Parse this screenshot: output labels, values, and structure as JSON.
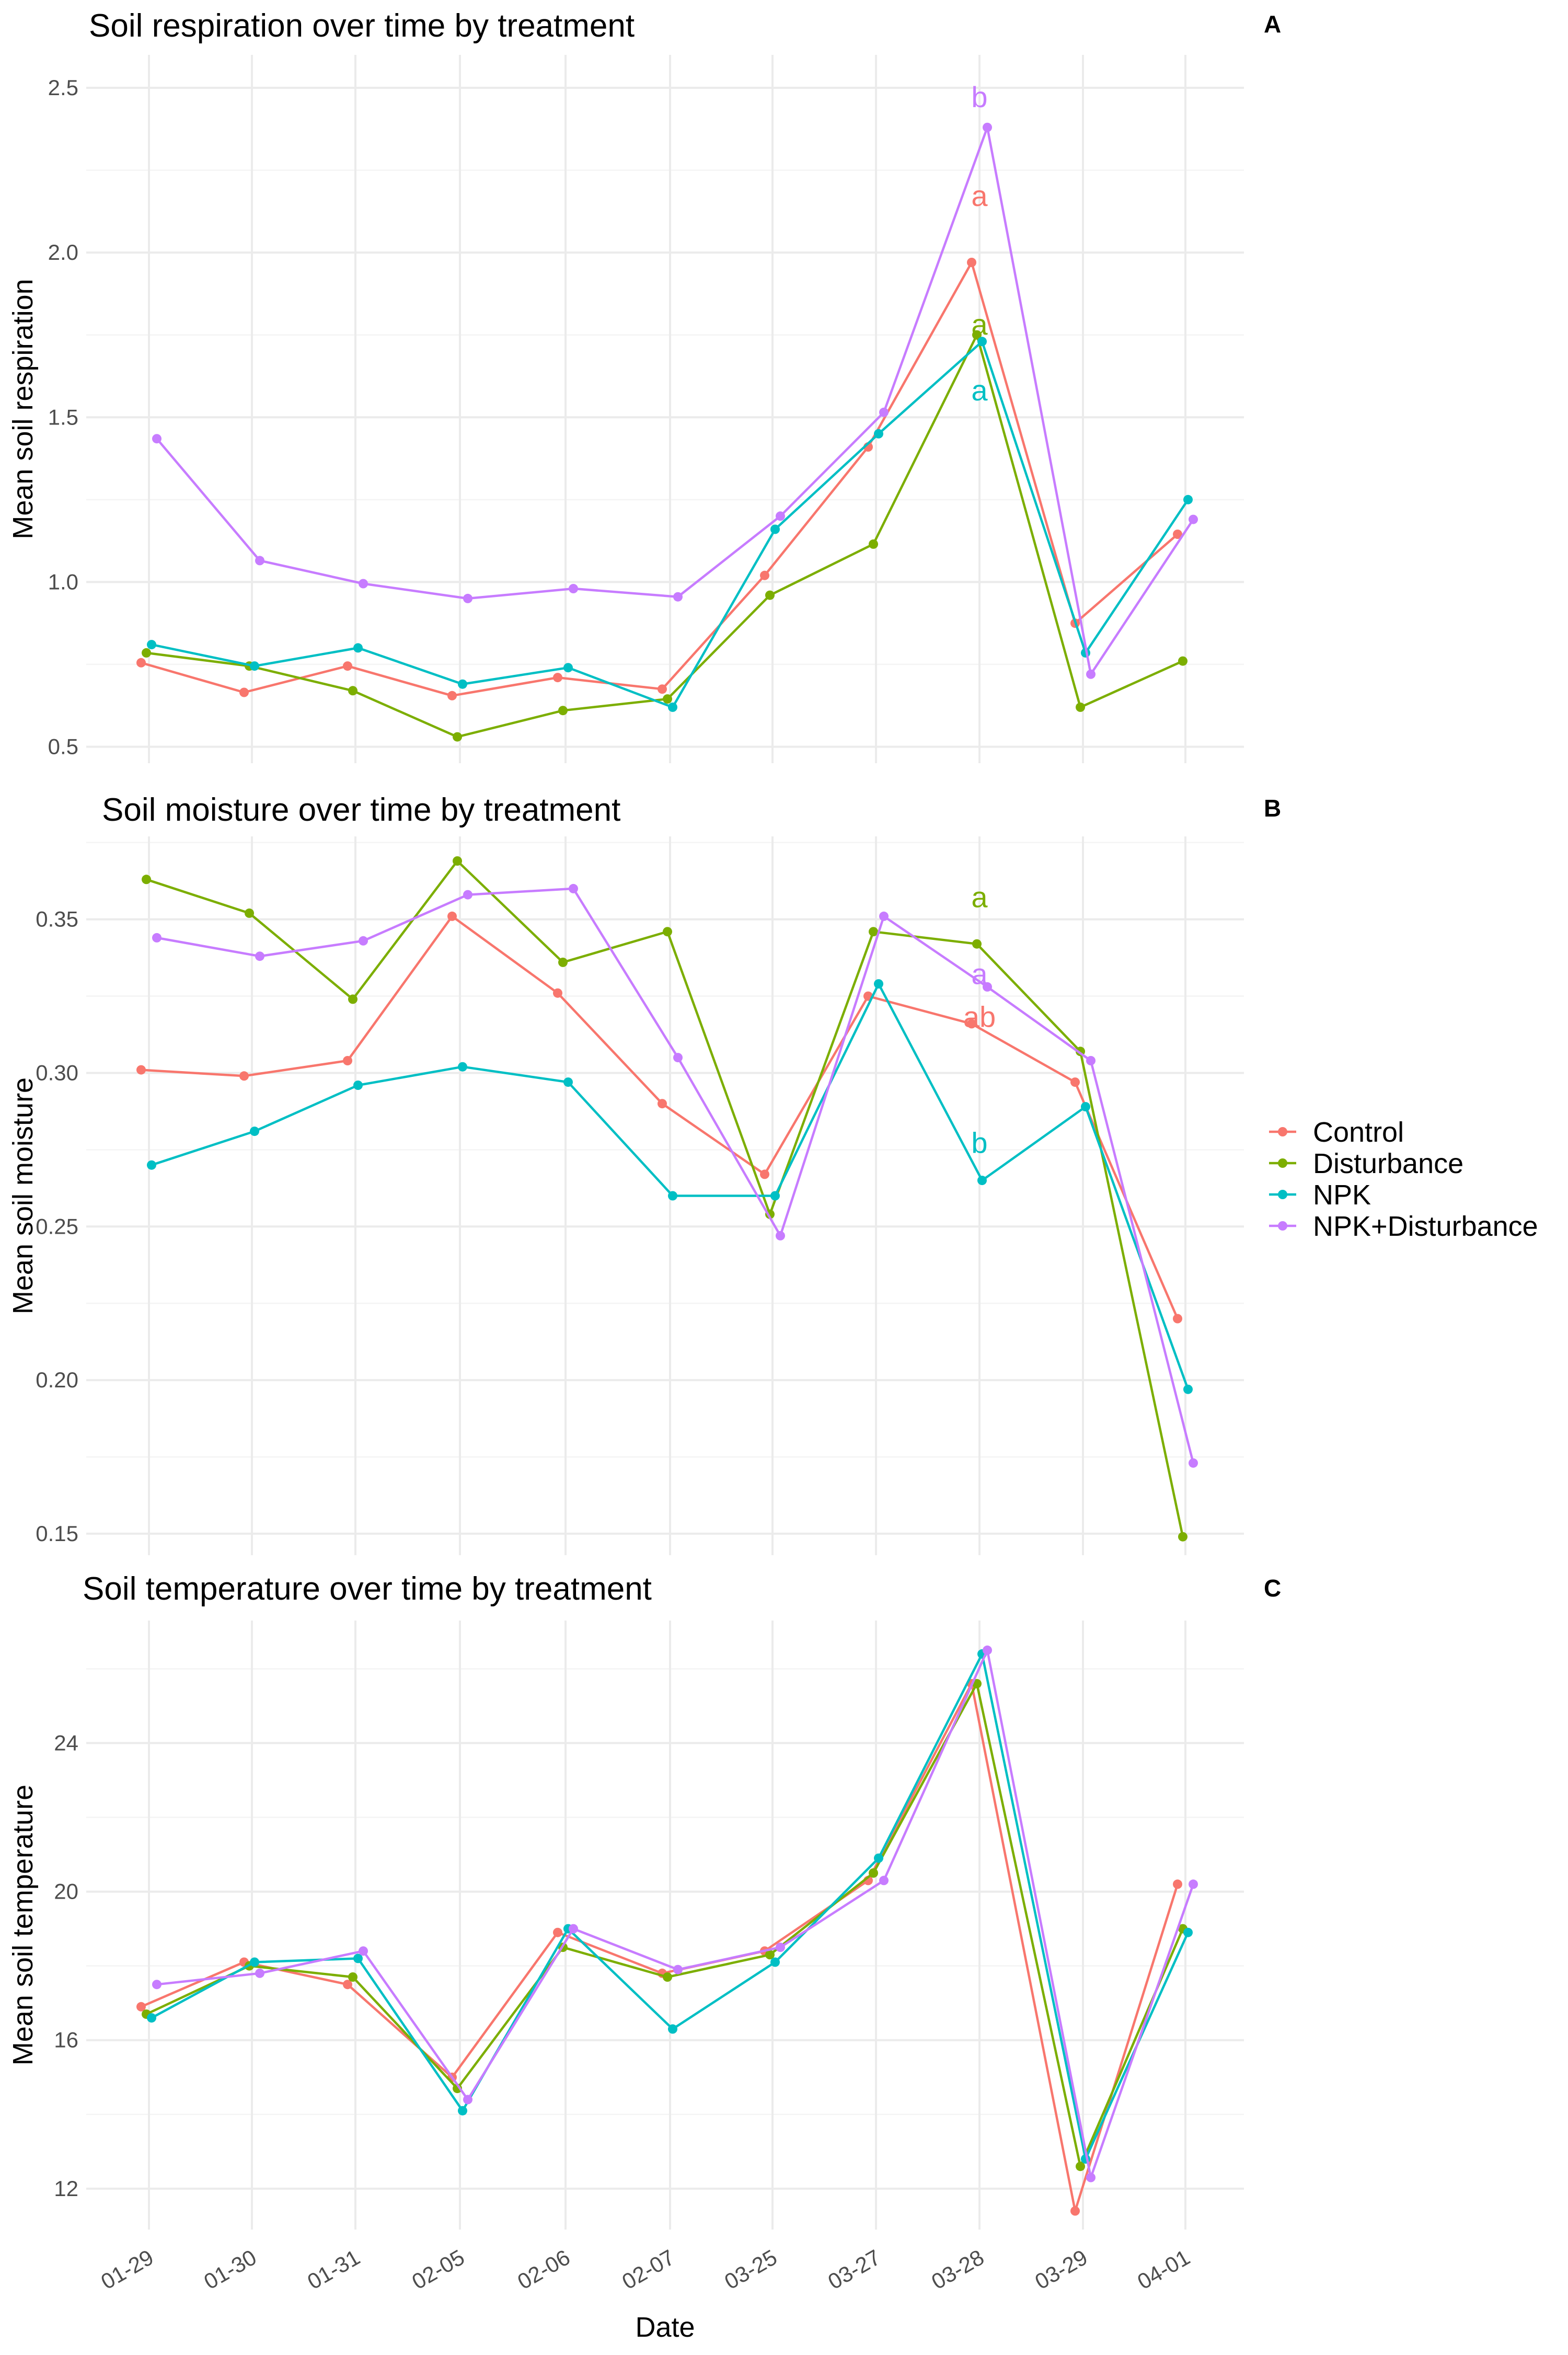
{
  "chart_data": [
    {
      "type": "line",
      "panel_tag": "A",
      "title": "Soil respiration over time by treatment",
      "ylabel": "Mean soil respiration",
      "xlabel": "",
      "ylim": [
        0.45,
        2.6
      ],
      "yticks": [
        0.5,
        1.0,
        1.5,
        2.0,
        2.5
      ],
      "ytick_labels": [
        "0.5",
        "1.0",
        "1.5",
        "2.0",
        "2.5"
      ],
      "show_x_tick_labels": false,
      "grid": true,
      "categories": [
        "01-29",
        "01-30",
        "01-31",
        "02-05",
        "02-06",
        "02-07",
        "03-25",
        "03-27",
        "03-28",
        "03-29",
        "04-01"
      ],
      "series": [
        {
          "name": "Control",
          "values": [
            0.755,
            0.665,
            0.745,
            0.655,
            0.71,
            0.675,
            1.02,
            1.41,
            1.97,
            0.875,
            1.145
          ]
        },
        {
          "name": "Disturbance",
          "values": [
            0.785,
            0.745,
            0.67,
            0.53,
            0.61,
            0.645,
            0.96,
            1.115,
            1.75,
            0.62,
            0.76
          ]
        },
        {
          "name": "NPK",
          "values": [
            0.81,
            0.745,
            0.8,
            0.69,
            0.74,
            0.62,
            1.16,
            1.45,
            1.73,
            0.785,
            1.25
          ]
        },
        {
          "name": "NPK+Disturbance",
          "values": [
            1.435,
            1.065,
            0.995,
            0.95,
            0.98,
            0.955,
            1.2,
            1.515,
            2.38,
            0.72,
            1.19
          ]
        }
      ],
      "annotations": [
        {
          "text": "b",
          "category": "03-28",
          "value": 2.47,
          "series": "NPK+Disturbance"
        },
        {
          "text": "a",
          "category": "03-28",
          "value": 2.17,
          "series": "Control"
        },
        {
          "text": "a",
          "category": "03-28",
          "value": 1.78,
          "series": "Disturbance"
        },
        {
          "text": "a",
          "category": "03-28",
          "value": 1.58,
          "series": "NPK"
        }
      ]
    },
    {
      "type": "line",
      "panel_tag": "B",
      "title": "Soil moisture over time by treatment",
      "ylabel": "Mean soil moisture",
      "xlabel": "",
      "ylim": [
        0.143,
        0.377
      ],
      "yticks": [
        0.15,
        0.2,
        0.25,
        0.3,
        0.35
      ],
      "ytick_labels": [
        "0.15",
        "0.20",
        "0.25",
        "0.30",
        "0.35"
      ],
      "show_x_tick_labels": false,
      "grid": true,
      "categories": [
        "01-29",
        "01-30",
        "01-31",
        "02-05",
        "02-06",
        "02-07",
        "03-25",
        "03-27",
        "03-28",
        "03-29",
        "04-01"
      ],
      "series": [
        {
          "name": "Control",
          "values": [
            0.301,
            0.299,
            0.304,
            0.351,
            0.326,
            0.29,
            0.267,
            0.325,
            0.316,
            0.297,
            0.22
          ]
        },
        {
          "name": "Disturbance",
          "values": [
            0.363,
            0.352,
            0.324,
            0.369,
            0.336,
            0.346,
            0.254,
            0.346,
            0.342,
            0.307,
            0.149
          ]
        },
        {
          "name": "NPK",
          "values": [
            0.27,
            0.281,
            0.296,
            0.302,
            0.297,
            0.26,
            0.26,
            0.329,
            0.265,
            0.289,
            0.197
          ]
        },
        {
          "name": "NPK+Disturbance",
          "values": [
            0.344,
            0.338,
            0.343,
            0.358,
            0.36,
            0.305,
            0.247,
            0.351,
            0.328,
            0.304,
            0.173
          ]
        }
      ],
      "annotations": [
        {
          "text": "a",
          "category": "03-28",
          "value": 0.357,
          "series": "Disturbance"
        },
        {
          "text": "a",
          "category": "03-28",
          "value": 0.332,
          "series": "NPK+Disturbance"
        },
        {
          "text": "ab",
          "category": "03-28",
          "value": 0.318,
          "series": "Control"
        },
        {
          "text": "b",
          "category": "03-28",
          "value": 0.277,
          "series": "NPK"
        }
      ]
    },
    {
      "type": "line",
      "panel_tag": "C",
      "title": "Soil temperature over time by treatment",
      "ylabel": "Mean soil temperature",
      "xlabel": "Date",
      "ylim": [
        10.9,
        27.3
      ],
      "yticks": [
        12,
        16,
        20,
        24
      ],
      "ytick_labels": [
        "12",
        "16",
        "20",
        "24"
      ],
      "show_x_tick_labels": true,
      "grid": true,
      "categories": [
        "01-29",
        "01-30",
        "01-31",
        "02-05",
        "02-06",
        "02-07",
        "03-25",
        "03-27",
        "03-28",
        "03-29",
        "04-01"
      ],
      "series": [
        {
          "name": "Control",
          "values": [
            16.9,
            18.1,
            17.5,
            15.0,
            18.9,
            17.8,
            18.4,
            20.3,
            25.6,
            11.4,
            20.2
          ]
        },
        {
          "name": "Disturbance",
          "values": [
            16.7,
            18.0,
            17.7,
            14.7,
            18.5,
            17.7,
            18.3,
            20.5,
            25.6,
            12.6,
            19.0
          ]
        },
        {
          "name": "NPK",
          "values": [
            16.6,
            18.1,
            18.2,
            14.1,
            19.0,
            16.3,
            18.1,
            20.9,
            26.4,
            12.8,
            18.9
          ]
        },
        {
          "name": "NPK+Disturbance",
          "values": [
            17.5,
            17.8,
            18.4,
            14.4,
            19.0,
            17.9,
            18.5,
            20.3,
            26.5,
            12.3,
            20.2
          ]
        }
      ],
      "annotations": []
    }
  ],
  "legend": {
    "placement": "right",
    "items": [
      {
        "label": "Control",
        "color": "#F8766D"
      },
      {
        "label": "Disturbance",
        "color": "#7CAE00"
      },
      {
        "label": "NPK",
        "color": "#00BFC4"
      },
      {
        "label": "NPK+Disturbance",
        "color": "#C77CFF"
      }
    ]
  },
  "colors": {
    "Control": "#F8766D",
    "Disturbance": "#7CAE00",
    "NPK": "#00BFC4",
    "NPK+Disturbance": "#C77CFF"
  }
}
